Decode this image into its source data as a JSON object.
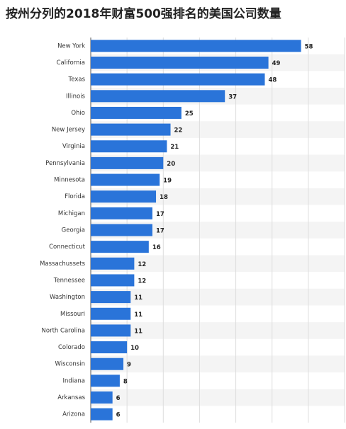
{
  "chart_data": {
    "type": "hbar",
    "title": "按州分列的2018年财富500强排名的美国公司数量",
    "categories": [
      "New York",
      "California",
      "Texas",
      "Illinois",
      "Ohio",
      "New Jersey",
      "Virginia",
      "Pennsylvania",
      "Minnesota",
      "Florida",
      "Michigan",
      "Georgia",
      "Connecticut",
      "Massachussets",
      "Tennessee",
      "Washington",
      "Missouri",
      "North Carolina",
      "Colorado",
      "Wisconsin",
      "Indiana",
      "Arkansas",
      "Arizona"
    ],
    "values": [
      58,
      49,
      48,
      37,
      25,
      22,
      21,
      20,
      19,
      18,
      17,
      17,
      16,
      12,
      12,
      11,
      11,
      11,
      10,
      9,
      8,
      6,
      6
    ],
    "color": "#2a74d9",
    "xlim": [
      0,
      70
    ],
    "xticks": [
      0,
      10,
      20,
      30,
      40,
      50,
      60,
      70
    ],
    "grid": true
  }
}
